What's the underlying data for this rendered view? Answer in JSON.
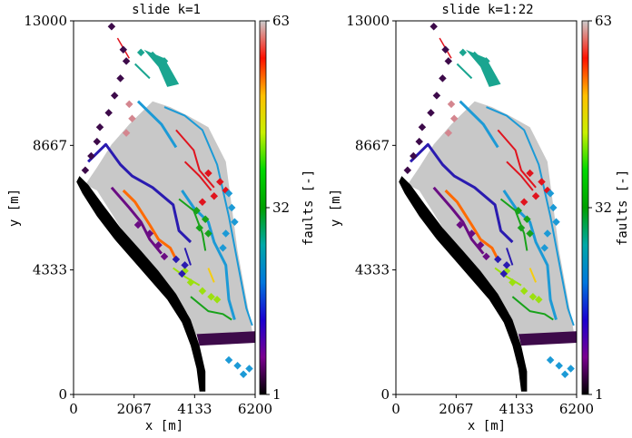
{
  "chart_data": [
    {
      "type": "map",
      "title": "slide k=1",
      "xlabel": "x [m]",
      "ylabel": "y [m]",
      "xlim": [
        0,
        6200
      ],
      "ylim": [
        0,
        13000
      ],
      "x_ticks": [
        "0",
        "2067",
        "4133",
        "6200"
      ],
      "y_ticks": [
        "0",
        "4333",
        "8667",
        "13000"
      ],
      "colorbar": {
        "label": "faults [-]",
        "min": 1,
        "max": 63,
        "ticks": [
          "1",
          "32",
          "63"
        ],
        "colormap": "nipy_spectral"
      }
    },
    {
      "type": "map",
      "title": "slide k=1:22",
      "xlabel": "x [m]",
      "ylabel": "y [m]",
      "xlim": [
        0,
        6200
      ],
      "ylim": [
        0,
        13000
      ],
      "x_ticks": [
        "0",
        "2067",
        "4133",
        "6200"
      ],
      "y_ticks": [
        "0",
        "4333",
        "8667",
        "13000"
      ],
      "colorbar": {
        "label": "faults [-]",
        "min": 1,
        "max": 63,
        "ticks": [
          "1",
          "32",
          "63"
        ],
        "colormap": "nipy_spectral"
      }
    }
  ],
  "colors": {
    "reservoir": "#c8c8c8",
    "boundary": "#000000",
    "dark_purple": "#3d0a4a",
    "purple": "#6a0d83",
    "blue_violet": "#2a1bb0",
    "teal": "#1aa590",
    "cyan_blue": "#1c9ad6",
    "pink": "#d4868f",
    "red": "#e0141e",
    "orange": "#ff6a00",
    "green": "#18a21a",
    "lime": "#9be00e",
    "yellow": "#f5cc10"
  }
}
